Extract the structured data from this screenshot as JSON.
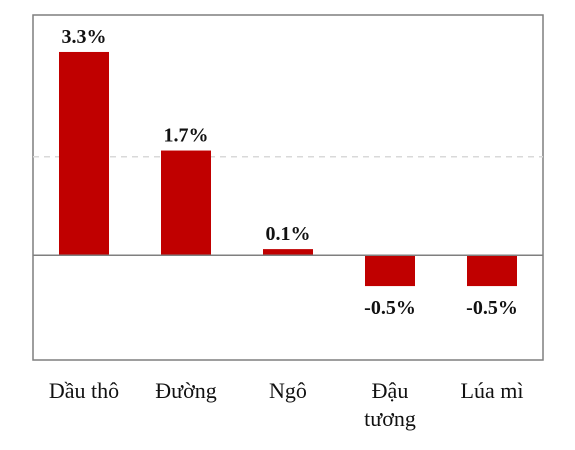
{
  "chart_data": {
    "type": "bar",
    "categories": [
      [
        "Dầu thô"
      ],
      [
        "Đường"
      ],
      [
        "Ngô"
      ],
      [
        "Đậu",
        "tương"
      ],
      [
        "Lúa mì"
      ]
    ],
    "values": [
      3.3,
      1.7,
      0.1,
      -0.5,
      -0.5
    ],
    "data_labels": [
      "3.3%",
      "1.7%",
      "0.1%",
      "-0.5%",
      "-0.5%"
    ],
    "ylim": [
      -1.7,
      3.9
    ],
    "reference_line": 1.6,
    "grid": false,
    "legend": "none",
    "colors": {
      "bar": "#C00000",
      "axis": "#7F7F7F",
      "frame": "#7F7F7F",
      "reference_line": "#D9D9D9"
    }
  }
}
